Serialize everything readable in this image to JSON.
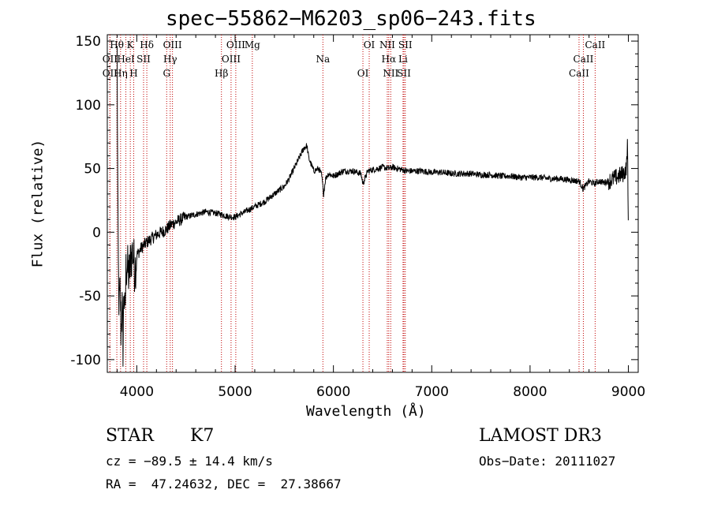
{
  "chart_data": {
    "type": "line",
    "title": "spec−55862−M6203_sp06−243.fits",
    "xlabel": "Wavelength (Å)",
    "ylabel": "Flux (relative)",
    "xlim": [
      3700,
      9100
    ],
    "ylim": [
      -110,
      155
    ],
    "xticks": [
      4000,
      5000,
      6000,
      7000,
      8000,
      9000
    ],
    "yticks": [
      -100,
      -50,
      0,
      50,
      100,
      150
    ],
    "series": [
      {
        "name": "flux",
        "x": [
          3800,
          3810,
          3820,
          3830,
          3840,
          3850,
          3860,
          3870,
          3880,
          3890,
          3900,
          3920,
          3940,
          3960,
          3980,
          4000,
          4050,
          4100,
          4150,
          4200,
          4250,
          4300,
          4350,
          4400,
          4500,
          4600,
          4700,
          4800,
          4860,
          4900,
          4950,
          5000,
          5100,
          5200,
          5300,
          5400,
          5500,
          5550,
          5600,
          5650,
          5700,
          5730,
          5750,
          5780,
          5800,
          5850,
          5880,
          5900,
          5920,
          5950,
          6000,
          6050,
          6100,
          6200,
          6280,
          6300,
          6350,
          6400,
          6450,
          6500,
          6560,
          6600,
          6650,
          6700,
          6750,
          6800,
          6900,
          7000,
          7100,
          7200,
          7300,
          7400,
          7500,
          7600,
          7700,
          7800,
          7900,
          8000,
          8100,
          8200,
          8300,
          8400,
          8500,
          8540,
          8600,
          8650,
          8700,
          8750,
          8800,
          8850,
          8900,
          8950,
          8980,
          8990,
          9000
        ],
        "y": [
          140,
          -20,
          -60,
          -45,
          -80,
          -55,
          -90,
          -40,
          -70,
          -30,
          -25,
          -35,
          -20,
          -15,
          -30,
          -18,
          -12,
          -8,
          -5,
          -2,
          0,
          2,
          6,
          8,
          12,
          14,
          16,
          15,
          14,
          13,
          12,
          12,
          16,
          20,
          24,
          30,
          36,
          42,
          50,
          58,
          66,
          68,
          58,
          52,
          48,
          50,
          45,
          30,
          42,
          46,
          44,
          46,
          48,
          48,
          46,
          38,
          48,
          49,
          50,
          51,
          50,
          51,
          50,
          49,
          48,
          48,
          48,
          47,
          47,
          46,
          46,
          46,
          45,
          45,
          44,
          44,
          43,
          43,
          43,
          42,
          42,
          41,
          40,
          34,
          40,
          38,
          40,
          39,
          40,
          42,
          44,
          46,
          50,
          70,
          0
        ]
      }
    ],
    "line_ids": [
      {
        "label": "Hθ",
        "wave": 3797
      },
      {
        "label": "OII",
        "wave": 3727
      },
      {
        "label": "OII",
        "wave": 3727
      },
      {
        "label": "K",
        "wave": 3934
      },
      {
        "label": "HeI",
        "wave": 3889
      },
      {
        "label": "Hη",
        "wave": 3835
      },
      {
        "label": "Hδ",
        "wave": 4102
      },
      {
        "label": "SII",
        "wave": 4069
      },
      {
        "label": "H",
        "wave": 3969
      },
      {
        "label": "OIII",
        "wave": 4363
      },
      {
        "label": "Hγ",
        "wave": 4340
      },
      {
        "label": "G",
        "wave": 4304
      },
      {
        "label": "OIII",
        "wave": 5007
      },
      {
        "label": "OIII",
        "wave": 4959
      },
      {
        "label": "Hβ",
        "wave": 4861
      },
      {
        "label": "Mg",
        "wave": 5175
      },
      {
        "label": "Na",
        "wave": 5893
      },
      {
        "label": "OI",
        "wave": 6300
      },
      {
        "label": "OI",
        "wave": 6364
      },
      {
        "label": "Hα",
        "wave": 6563
      },
      {
        "label": "SII",
        "wave": 6717
      },
      {
        "label": "NII",
        "wave": 6548
      },
      {
        "label": "Li",
        "wave": 6708
      },
      {
        "label": "NII",
        "wave": 6583
      },
      {
        "label": "SII",
        "wave": 6731
      },
      {
        "label": "CaII",
        "wave": 8542
      },
      {
        "label": "CaII",
        "wave": 8498
      },
      {
        "label": "CaII",
        "wave": 8662
      }
    ]
  },
  "info": {
    "class": "STAR",
    "subclass": "K7",
    "survey": "LAMOST DR3",
    "cz": "cz = −89.5 ± 14.4 km/s",
    "obs_date": "Obs−Date: 20111027",
    "coords": "RA =  47.24632, DEC =  27.38667"
  }
}
